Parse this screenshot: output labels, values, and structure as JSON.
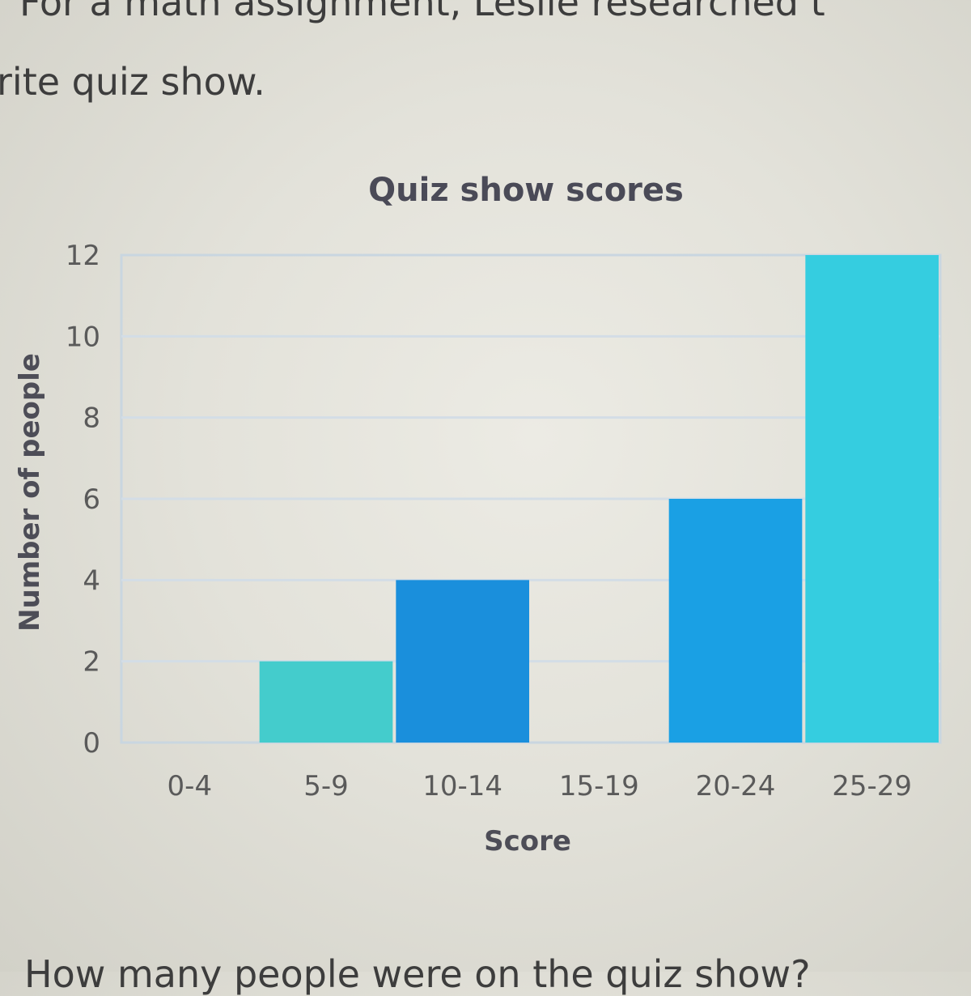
{
  "intro": {
    "line1": "For a math assignment, Leslie researched t",
    "line2": "rite quiz show."
  },
  "question": "How many people were on the quiz show?",
  "chart_data": {
    "type": "bar",
    "title": "Quiz show scores",
    "xlabel": "Score",
    "ylabel": "Number of people",
    "categories": [
      "0-4",
      "5-9",
      "10-14",
      "15-19",
      "20-24",
      "25-29"
    ],
    "values": [
      0,
      2,
      4,
      0,
      6,
      12
    ],
    "ylim": [
      0,
      12
    ],
    "yticks": [
      0,
      2,
      4,
      6,
      8,
      10,
      12
    ],
    "grid": true,
    "colors": [
      "#3fc9d4",
      "#44cccc",
      "#1a8fdc",
      "#29aadc",
      "#1aa0e4",
      "#35cde0"
    ]
  }
}
